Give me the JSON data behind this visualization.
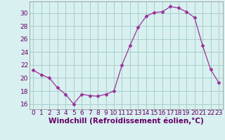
{
  "x": [
    0,
    1,
    2,
    3,
    4,
    5,
    6,
    7,
    8,
    9,
    10,
    11,
    12,
    13,
    14,
    15,
    16,
    17,
    18,
    19,
    20,
    21,
    22,
    23
  ],
  "y": [
    21.2,
    20.5,
    20.0,
    18.5,
    17.5,
    16.0,
    17.5,
    17.3,
    17.2,
    17.5,
    18.0,
    22.0,
    25.0,
    27.8,
    29.5,
    30.1,
    30.2,
    31.0,
    30.8,
    30.2,
    29.3,
    25.0,
    21.3,
    19.3
  ],
  "line_color": "#993399",
  "marker": "D",
  "marker_size": 2.5,
  "bg_color": "#d8f0f0",
  "grid_color": "#aacccc",
  "xlabel": "Windchill (Refroidissement éolien,°C)",
  "xlabel_color": "#660066",
  "xlabel_fontsize": 7.5,
  "tick_color": "#660066",
  "tick_fontsize": 6.5,
  "yticks": [
    16,
    18,
    20,
    22,
    24,
    26,
    28,
    30
  ],
  "xticks": [
    0,
    1,
    2,
    3,
    4,
    5,
    6,
    7,
    8,
    9,
    10,
    11,
    12,
    13,
    14,
    15,
    16,
    17,
    18,
    19,
    20,
    21,
    22,
    23
  ],
  "ylim": [
    15.2,
    31.8
  ],
  "xlim": [
    -0.5,
    23.5
  ]
}
